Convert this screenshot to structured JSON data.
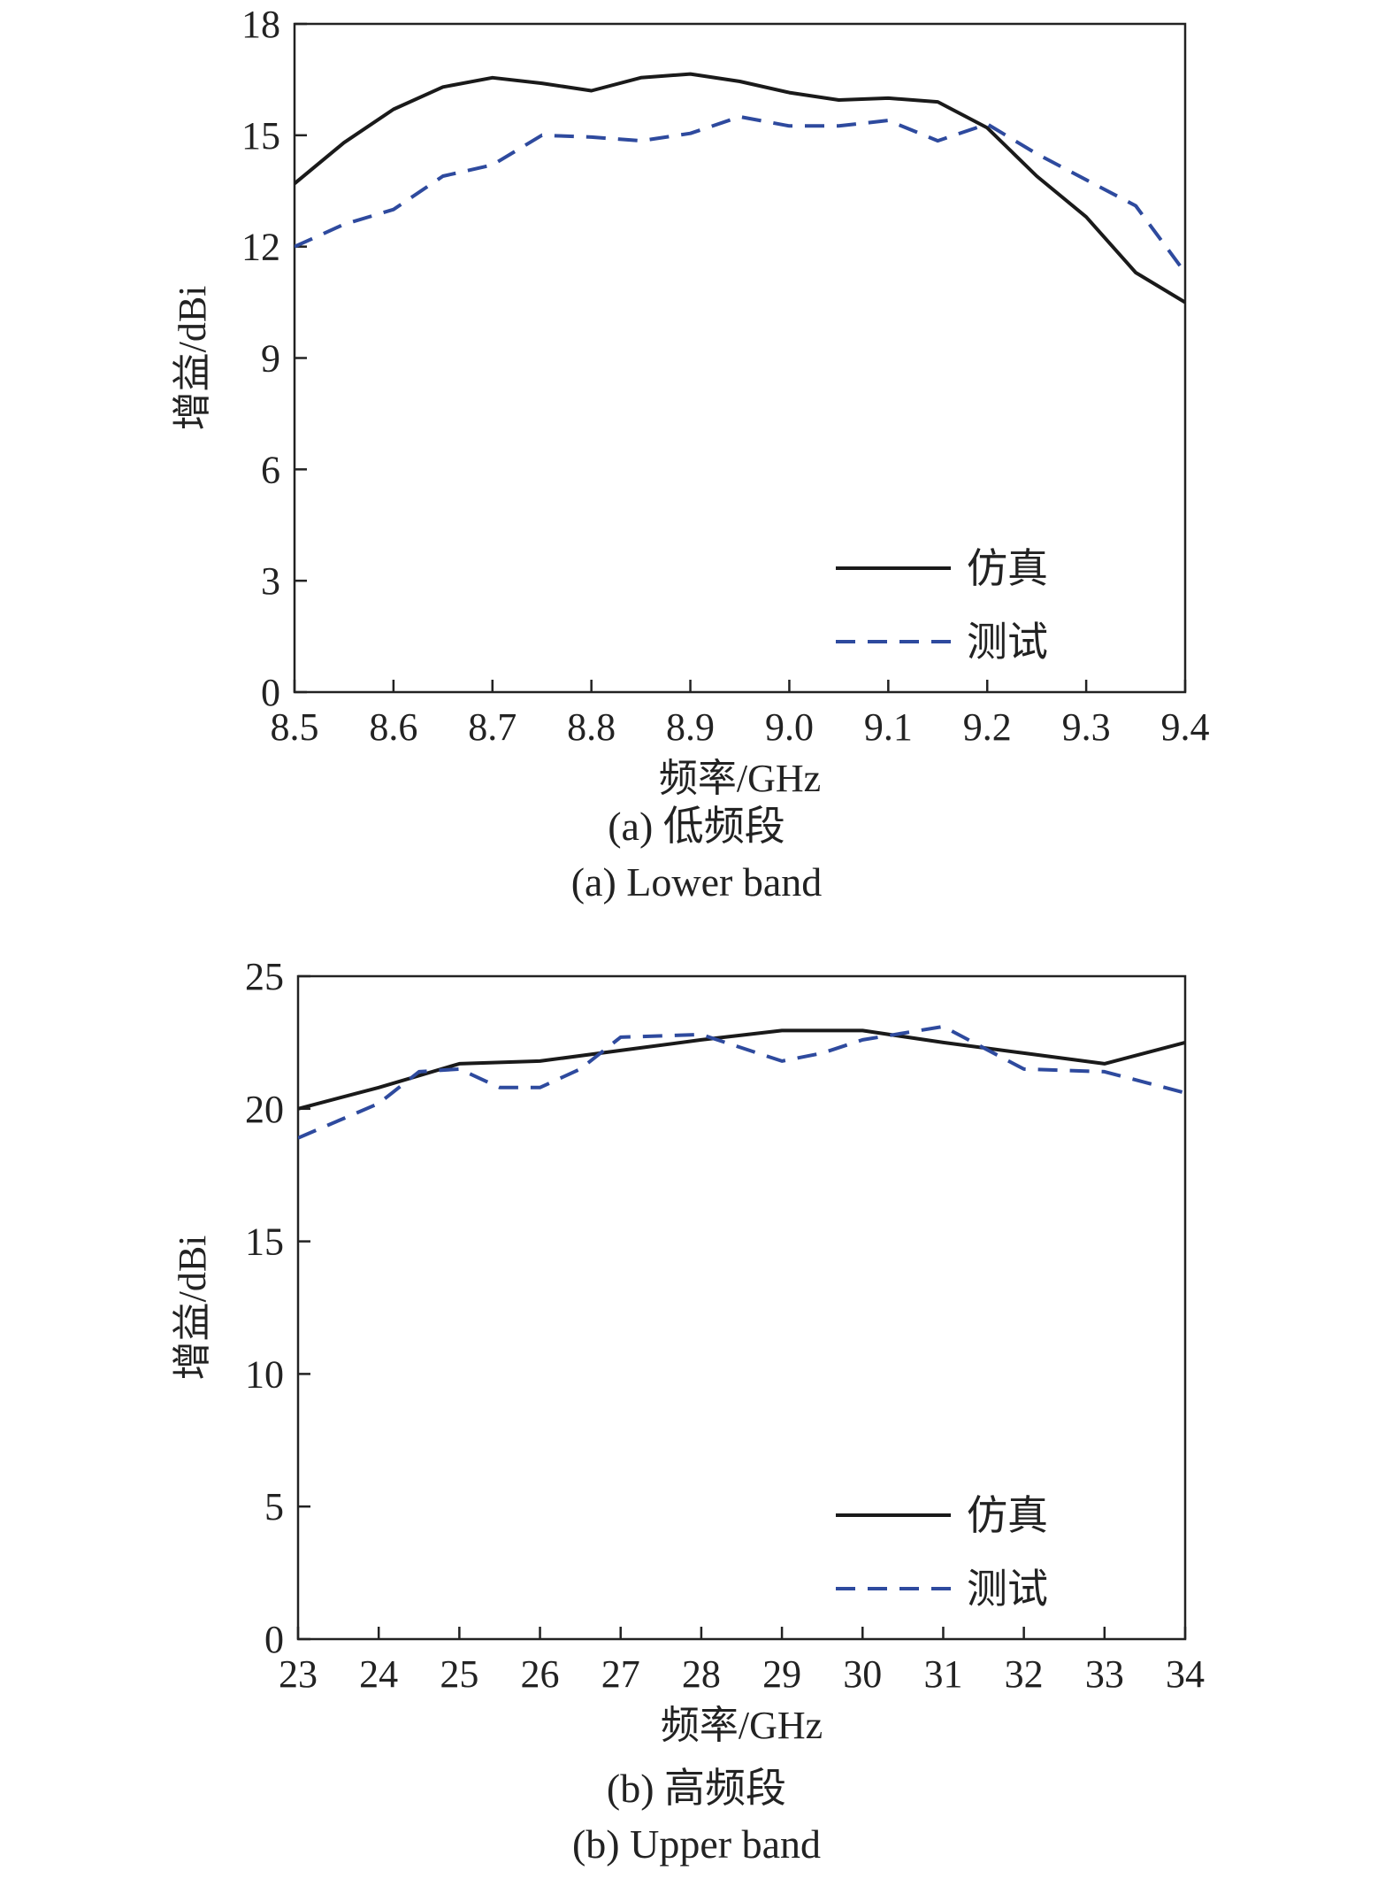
{
  "colors": {
    "simulated": "#1a1a1a",
    "measured": "#2e4a9e",
    "axis": "#222222"
  },
  "figures": [
    {
      "caption_cn": "(a) 低频段",
      "caption_en": "(a) Lower band",
      "chart_data": {
        "type": "line",
        "xlabel": "频率/GHz",
        "ylabel": "增益/dBi",
        "xlim": [
          8.5,
          9.4
        ],
        "ylim": [
          0,
          18
        ],
        "xticks": [
          "8.5",
          "8.6",
          "8.7",
          "8.8",
          "8.9",
          "9.0",
          "9.1",
          "9.2",
          "9.3",
          "9.4"
        ],
        "yticks": [
          "0",
          "3",
          "6",
          "9",
          "12",
          "15",
          "18"
        ],
        "legend": {
          "placement": "lower-right"
        },
        "series": [
          {
            "name": "仿真",
            "style": "solid",
            "x": [
              8.5,
              8.55,
              8.6,
              8.65,
              8.7,
              8.75,
              8.8,
              8.85,
              8.9,
              8.95,
              9.0,
              9.05,
              9.1,
              9.15,
              9.2,
              9.25,
              9.3,
              9.35,
              9.4
            ],
            "y": [
              13.7,
              14.8,
              15.7,
              16.3,
              16.55,
              16.4,
              16.2,
              16.55,
              16.65,
              16.45,
              16.15,
              15.95,
              16.0,
              15.9,
              15.2,
              13.9,
              12.8,
              11.3,
              10.5
            ]
          },
          {
            "name": "测试",
            "style": "dashed",
            "x": [
              8.5,
              8.55,
              8.6,
              8.65,
              8.7,
              8.75,
              8.8,
              8.85,
              8.9,
              8.95,
              9.0,
              9.05,
              9.1,
              9.15,
              9.2,
              9.25,
              9.3,
              9.35,
              9.4
            ],
            "y": [
              12.0,
              12.6,
              13.0,
              13.9,
              14.2,
              15.0,
              14.95,
              14.85,
              15.05,
              15.5,
              15.25,
              15.25,
              15.4,
              14.85,
              15.3,
              14.5,
              13.8,
              13.1,
              11.3
            ]
          }
        ]
      }
    },
    {
      "caption_cn": "(b) 高频段",
      "caption_en": "(b) Upper band",
      "chart_data": {
        "type": "line",
        "xlabel": "频率/GHz",
        "ylabel": "增益/dBi",
        "xlim": [
          23,
          34
        ],
        "ylim": [
          0,
          25
        ],
        "xticks": [
          "23",
          "24",
          "25",
          "26",
          "27",
          "28",
          "29",
          "30",
          "31",
          "32",
          "33",
          "34"
        ],
        "yticks": [
          "0",
          "5",
          "10",
          "15",
          "20",
          "25"
        ],
        "legend": {
          "placement": "lower-right"
        },
        "series": [
          {
            "name": "仿真",
            "style": "solid",
            "x": [
              23,
              24,
              25,
              26,
              27,
              28,
              29,
              30,
              31,
              32,
              33,
              34
            ],
            "y": [
              20.0,
              20.8,
              21.7,
              21.8,
              22.2,
              22.6,
              22.95,
              22.95,
              22.5,
              22.1,
              21.7,
              22.5
            ]
          },
          {
            "name": "测试",
            "style": "dashed",
            "x": [
              23,
              24,
              24.5,
              25,
              25.5,
              26,
              26.5,
              27,
              28,
              29,
              29.5,
              30,
              31,
              32,
              33,
              34
            ],
            "y": [
              18.9,
              20.2,
              21.4,
              21.5,
              20.8,
              20.8,
              21.5,
              22.7,
              22.8,
              21.8,
              22.1,
              22.6,
              23.1,
              21.5,
              21.4,
              20.6
            ]
          }
        ]
      }
    }
  ]
}
